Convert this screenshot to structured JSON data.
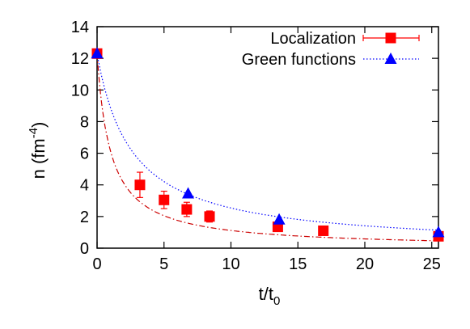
{
  "chart_data": {
    "type": "scatter",
    "xlabel": "t/t",
    "xlabel_sub": "0",
    "ylabel": "n (fm",
    "ylabel_sup": "-4",
    "ylabel_close": ")",
    "xlim": [
      0,
      25.5
    ],
    "ylim": [
      0,
      14
    ],
    "xticks": [
      0,
      5,
      10,
      15,
      20,
      25
    ],
    "yticks": [
      0,
      2,
      4,
      6,
      8,
      10,
      12,
      14
    ],
    "grid": false,
    "legend_position": "top-right",
    "series": [
      {
        "name": "Localization",
        "marker": "square",
        "color": "#ff0000",
        "line_color": "#cc0000",
        "line_style": "dash-dot",
        "x": [
          0,
          3.2,
          5.0,
          6.7,
          8.4,
          13.5,
          16.9,
          25.5
        ],
        "y": [
          12.3,
          4.0,
          3.05,
          2.45,
          2.0,
          1.35,
          1.1,
          0.75
        ],
        "err": [
          0,
          0.8,
          0.55,
          0.45,
          0.35,
          0.15,
          0.1,
          0.1
        ],
        "fit": {
          "a": 1.0,
          "c": 12.3
        }
      },
      {
        "name": "Green functions",
        "marker": "triangle",
        "color": "#0000ff",
        "line_color": "#0000ff",
        "line_style": "dotted",
        "x": [
          0,
          6.8,
          13.6,
          25.5
        ],
        "y": [
          12.3,
          3.45,
          1.8,
          1.0
        ],
        "fit": {
          "a": 2.6,
          "c": 12.3
        }
      }
    ]
  }
}
